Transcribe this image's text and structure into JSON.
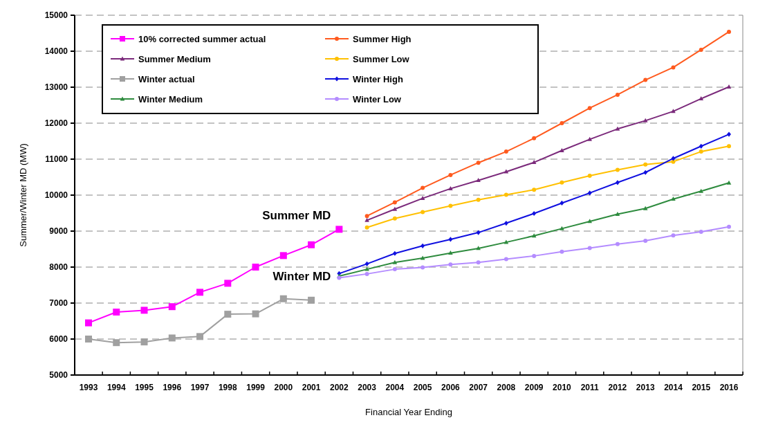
{
  "chart_data": {
    "type": "line",
    "xlabel": "Financial Year Ending",
    "ylabel": "Summer/Winter MD (MW)",
    "categories": [
      "1993",
      "1994",
      "1995",
      "1996",
      "1997",
      "1998",
      "1999",
      "2000",
      "2001",
      "2002",
      "2003",
      "2004",
      "2005",
      "2006",
      "2007",
      "2008",
      "2009",
      "2010",
      "2011",
      "2012",
      "2013",
      "2014",
      "2015",
      "2016"
    ],
    "ylim": [
      5000,
      15000
    ],
    "yticks": [
      5000,
      6000,
      7000,
      8000,
      9000,
      10000,
      11000,
      12000,
      13000,
      14000,
      15000
    ],
    "grid": "y",
    "legend": "top left",
    "series": [
      {
        "name": "10% corrected summer actual",
        "color": "#ff00ff",
        "marker": "square",
        "values": [
          6450,
          6750,
          6800,
          6900,
          7300,
          7550,
          8000,
          8320,
          8620,
          9050,
          null,
          null,
          null,
          null,
          null,
          null,
          null,
          null,
          null,
          null,
          null,
          null,
          null,
          null
        ]
      },
      {
        "name": "Summer High",
        "color": "#ff5a1e",
        "marker": "circle",
        "values": [
          null,
          null,
          null,
          null,
          null,
          null,
          null,
          null,
          null,
          null,
          9420,
          9800,
          10200,
          10560,
          10900,
          11210,
          11580,
          12000,
          12420,
          12790,
          13200,
          13550,
          14040,
          14540
        ]
      },
      {
        "name": "Summer Medium",
        "color": "#7b2a7b",
        "marker": "triangle",
        "values": [
          null,
          null,
          null,
          null,
          null,
          null,
          null,
          null,
          null,
          null,
          9300,
          9610,
          9910,
          10180,
          10410,
          10650,
          10910,
          11240,
          11550,
          11840,
          12070,
          12330,
          12680,
          13010
        ]
      },
      {
        "name": "Summer Low",
        "color": "#ffc000",
        "marker": "circle",
        "values": [
          null,
          null,
          null,
          null,
          null,
          null,
          null,
          null,
          null,
          null,
          9100,
          9350,
          9530,
          9700,
          9870,
          10010,
          10150,
          10350,
          10540,
          10700,
          10850,
          10930,
          11210,
          11360
        ]
      },
      {
        "name": "Winter actual",
        "color": "#a0a0a0",
        "marker": "square",
        "values": [
          6000,
          5900,
          5920,
          6030,
          6070,
          6690,
          6700,
          7120,
          7080,
          null,
          null,
          null,
          null,
          null,
          null,
          null,
          null,
          null,
          null,
          null,
          null,
          null,
          null,
          null
        ]
      },
      {
        "name": "Winter High",
        "color": "#1010e0",
        "marker": "diamond",
        "values": [
          null,
          null,
          null,
          null,
          null,
          null,
          null,
          null,
          null,
          7820,
          8090,
          8380,
          8590,
          8770,
          8960,
          9220,
          9490,
          9780,
          10060,
          10350,
          10630,
          11020,
          11360,
          11690
        ]
      },
      {
        "name": "Winter Medium",
        "color": "#2e8b3e",
        "marker": "triangle",
        "values": [
          null,
          null,
          null,
          null,
          null,
          null,
          null,
          null,
          null,
          7750,
          7940,
          8130,
          8250,
          8390,
          8520,
          8690,
          8870,
          9070,
          9270,
          9470,
          9630,
          9890,
          10110,
          10340
        ]
      },
      {
        "name": "Winter Low",
        "color": "#b48cff",
        "marker": "circle",
        "values": [
          null,
          null,
          null,
          null,
          null,
          null,
          null,
          null,
          null,
          7700,
          7810,
          7940,
          7990,
          8070,
          8130,
          8220,
          8310,
          8430,
          8530,
          8640,
          8730,
          8880,
          8980,
          9120
        ]
      }
    ],
    "annotations": [
      "Summer MD",
      "Winter MD"
    ]
  }
}
